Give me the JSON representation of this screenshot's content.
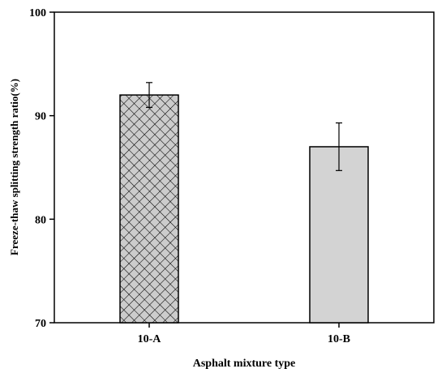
{
  "chart_data": {
    "type": "bar",
    "title": "",
    "xlabel": "Asphalt mixture type",
    "ylabel": "Freeze-thaw splitting strength ratio(%)",
    "categories": [
      "10-A",
      "10-B"
    ],
    "values": [
      92.0,
      87.0
    ],
    "errors": [
      1.2,
      2.3
    ],
    "ylim": [
      70,
      100
    ],
    "yticks": [
      "70",
      "80",
      "90",
      "100"
    ],
    "grid": false,
    "bar_styles": [
      {
        "fill": "#cccccc",
        "pattern": "crosshatch"
      },
      {
        "fill": "#d3d3d3",
        "pattern": "none"
      }
    ]
  }
}
